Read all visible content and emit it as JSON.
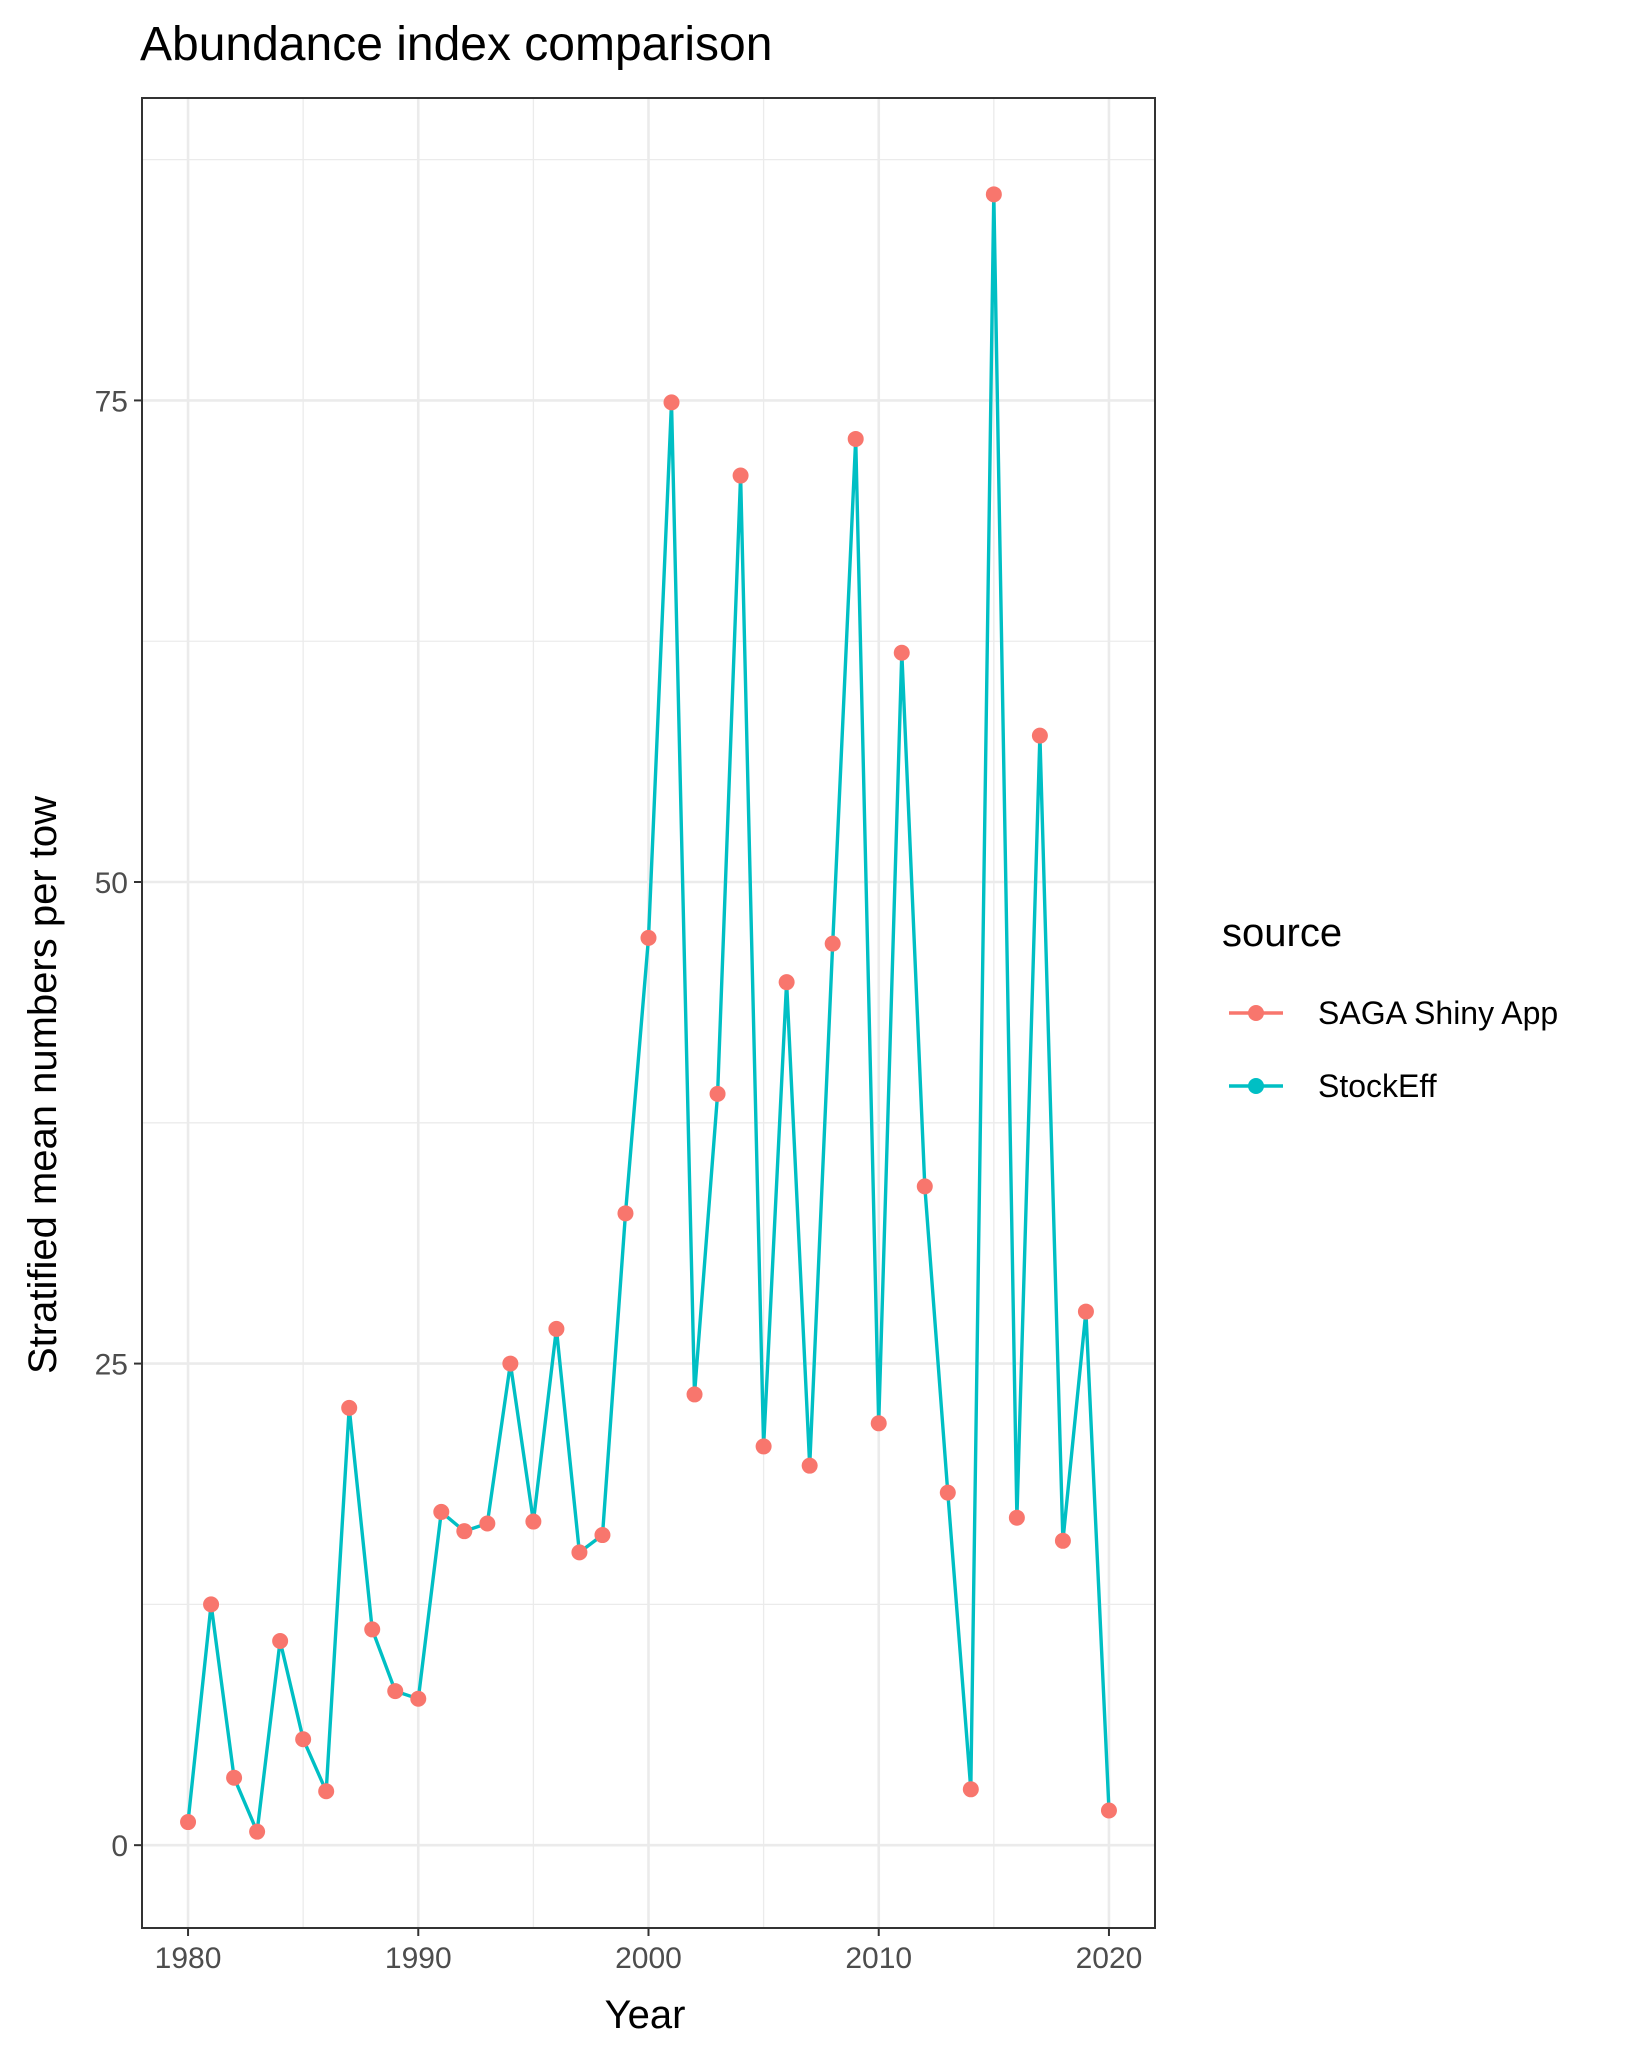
{
  "chart_data": {
    "type": "line",
    "title": "Abundance index comparison",
    "xlabel": "Year",
    "ylabel": "Stratified mean numbers per tow",
    "xlim": [
      1978,
      2022
    ],
    "ylim": [
      -4.3,
      90.7
    ],
    "x_ticks": [
      1980,
      1990,
      2000,
      2010,
      2020
    ],
    "x_tick_labels": [
      "1980",
      "1990",
      "2000",
      "2010",
      "2020"
    ],
    "y_ticks": [
      0,
      25,
      50,
      75
    ],
    "y_tick_labels": [
      "0",
      "25",
      "50",
      "75"
    ],
    "grid": true,
    "legend": {
      "title": "source",
      "placement": "right",
      "entries": [
        "SAGA Shiny App",
        "StockEff"
      ]
    },
    "x": [
      1980,
      1981,
      1982,
      1983,
      1984,
      1985,
      1986,
      1987,
      1988,
      1989,
      1990,
      1991,
      1992,
      1993,
      1994,
      1995,
      1996,
      1997,
      1998,
      1999,
      2000,
      2001,
      2002,
      2003,
      2004,
      2005,
      2006,
      2007,
      2008,
      2009,
      2010,
      2011,
      2012,
      2013,
      2014,
      2015,
      2016,
      2017,
      2018,
      2019,
      2020
    ],
    "series": [
      {
        "name": "SAGA Shiny App",
        "color": "#F8766D",
        "style": "points",
        "values": [
          1.2,
          12.5,
          3.5,
          0.7,
          10.6,
          5.5,
          2.8,
          22.7,
          11.2,
          8.0,
          7.6,
          17.3,
          16.3,
          16.7,
          25.0,
          16.8,
          26.8,
          15.2,
          16.1,
          32.8,
          47.1,
          74.9,
          23.4,
          39.0,
          71.1,
          20.7,
          44.8,
          19.7,
          46.8,
          73.0,
          21.9,
          61.9,
          34.2,
          18.3,
          2.9,
          85.7,
          17.0,
          57.6,
          15.8,
          27.7,
          1.8
        ]
      },
      {
        "name": "StockEff",
        "color": "#00BFC4",
        "style": "line",
        "values": [
          1.2,
          12.5,
          3.5,
          0.7,
          10.6,
          5.5,
          2.8,
          22.7,
          11.2,
          8.0,
          7.6,
          17.3,
          16.3,
          16.7,
          25.0,
          16.8,
          26.8,
          15.2,
          16.1,
          32.8,
          47.1,
          74.9,
          23.4,
          39.0,
          71.1,
          20.7,
          44.8,
          19.7,
          46.8,
          73.0,
          21.9,
          61.9,
          34.2,
          18.3,
          2.9,
          85.7,
          17.0,
          57.6,
          15.8,
          27.7,
          1.8
        ]
      }
    ]
  }
}
